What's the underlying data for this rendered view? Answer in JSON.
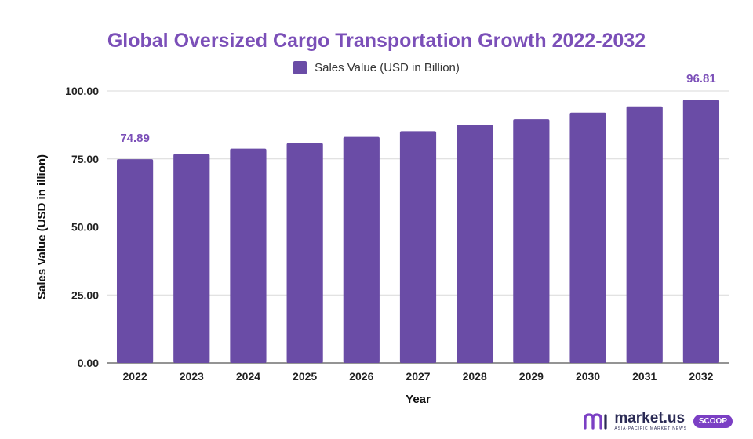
{
  "chart_data": {
    "type": "bar",
    "title": "Global Oversized Cargo Transportation Growth 2022-2032",
    "xlabel": "Year",
    "ylabel": "Sales Value (USD in illion)",
    "ylim": [
      0,
      100
    ],
    "yticks": [
      "0.00",
      "25.00",
      "50.00",
      "75.00",
      "100.00"
    ],
    "grid": true,
    "legend_position": "top-center",
    "categories": [
      "2022",
      "2023",
      "2024",
      "2025",
      "2026",
      "2027",
      "2028",
      "2029",
      "2030",
      "2031",
      "2032"
    ],
    "series": [
      {
        "name": "Sales Value (USD in Billion)",
        "color": "#6a4ca6",
        "values": [
          74.89,
          76.8,
          78.8,
          80.8,
          83.1,
          85.2,
          87.5,
          89.6,
          92.0,
          94.3,
          96.81
        ]
      }
    ],
    "data_labels": [
      {
        "category": "2022",
        "text": "74.89"
      },
      {
        "category": "2032",
        "text": "96.81"
      }
    ]
  },
  "brand": {
    "name": "market.us",
    "tagline": "ASIA-PACIFIC MARKET NEWS",
    "badge": "SCOOP",
    "logo_icon": "market-us-logo-icon"
  },
  "colors": {
    "bar": "#6a4ca6",
    "title": "#7b4fb8",
    "grid": "#d9d9d9"
  }
}
